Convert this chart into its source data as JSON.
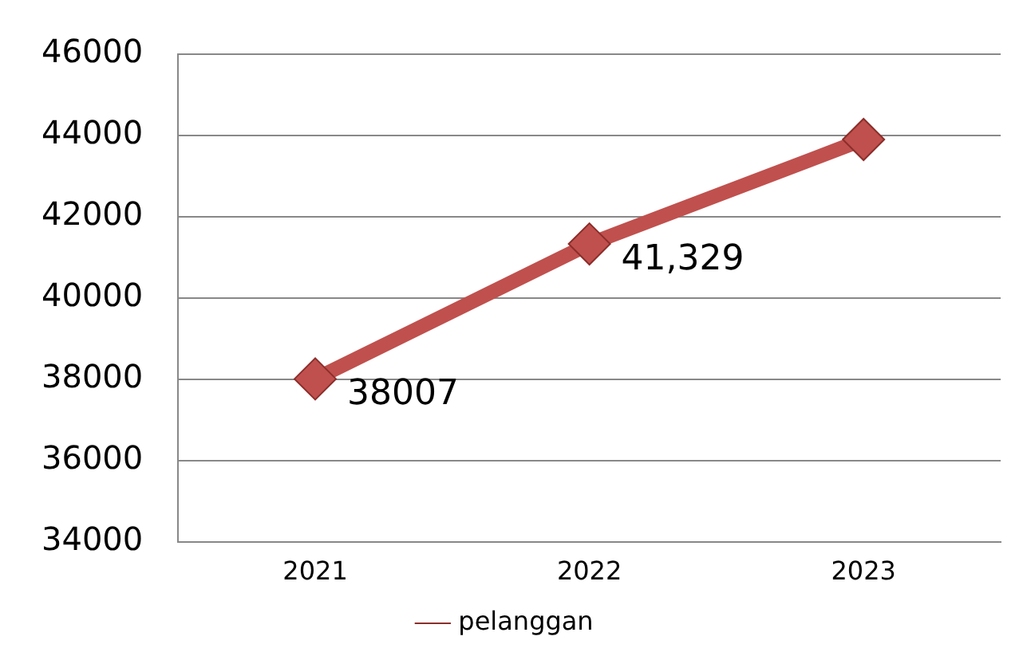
{
  "chart_data": {
    "type": "line",
    "categories": [
      "2021",
      "2022",
      "2023"
    ],
    "series": [
      {
        "name": "pelanggan",
        "color": "#c0504d",
        "values": [
          38007,
          41329,
          43900
        ],
        "value_labels": [
          "38007",
          "41,329",
          null
        ]
      }
    ],
    "ylim": [
      34000,
      46000
    ],
    "yticks": [
      34000,
      36000,
      38000,
      40000,
      42000,
      44000,
      46000
    ],
    "grid": "y",
    "legend": "bottom",
    "marker": "diamond",
    "line_style": "solid"
  }
}
